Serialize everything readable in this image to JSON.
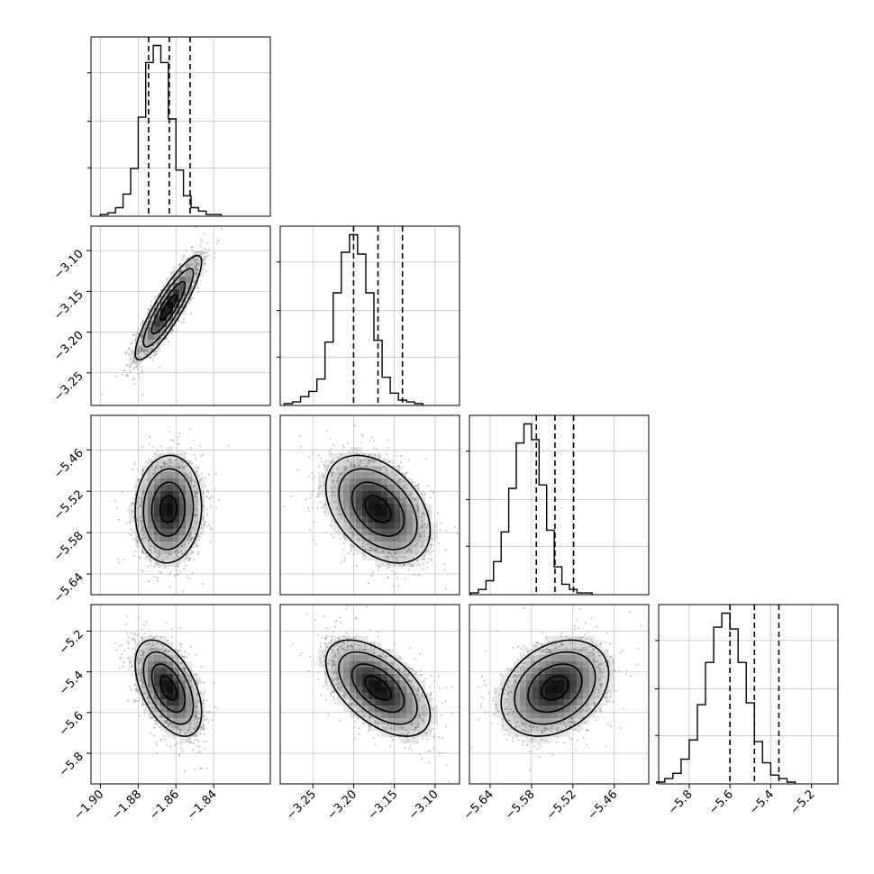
{
  "chart_data": {
    "type": "corner",
    "title": "",
    "parameters": [
      {
        "index": 0,
        "label": "",
        "range": [
          -1.905,
          -1.81
        ],
        "ticks": [
          "-1.90",
          "-1.88",
          "-1.86",
          "-1.84"
        ],
        "tick_values": [
          -1.9,
          -1.88,
          -1.86,
          -1.84
        ]
      },
      {
        "index": 1,
        "label": "",
        "range": [
          -3.29,
          -3.07
        ],
        "ticks": [
          "-3.25",
          "-3.20",
          "-3.15",
          "-3.10"
        ],
        "tick_values": [
          -3.25,
          -3.2,
          -3.15,
          -3.1
        ]
      },
      {
        "index": 2,
        "label": "",
        "range": [
          -5.67,
          -5.41
        ],
        "ticks": [
          "-5.64",
          "-5.58",
          "-5.52",
          "-5.46"
        ],
        "tick_values": [
          -5.64,
          -5.58,
          -5.52,
          -5.46
        ]
      },
      {
        "index": 3,
        "label": "",
        "range": [
          -5.95,
          -5.07
        ],
        "ticks": [
          "-5.8",
          "-5.6",
          "-5.4",
          "-5.2"
        ],
        "tick_values": [
          -5.8,
          -5.6,
          -5.4,
          -5.2
        ]
      }
    ],
    "histograms": [
      {
        "param": 0,
        "quantiles": [
          -1.8745,
          -1.8635,
          -1.8525
        ],
        "bin_start": -1.9,
        "bin_width": 0.004,
        "counts": [
          1,
          2,
          5,
          13,
          28,
          58,
          90,
          100,
          90,
          57,
          27,
          12,
          5,
          3,
          1,
          1
        ]
      },
      {
        "param": 1,
        "quantiles": [
          -3.2,
          -3.17,
          -3.14
        ],
        "bin_start": -3.285,
        "bin_width": 0.01,
        "counts": [
          1,
          2,
          5,
          8,
          15,
          36,
          64,
          87,
          97,
          86,
          64,
          37,
          16,
          7,
          3,
          2,
          1
        ]
      },
      {
        "param": 2,
        "quantiles": [
          -5.573,
          -5.546,
          -5.519
        ],
        "bin_start": -5.668,
        "bin_width": 0.011,
        "counts": [
          1,
          3,
          8,
          19,
          36,
          61,
          87,
          98,
          89,
          63,
          37,
          16,
          6,
          3,
          1,
          1
        ]
      },
      {
        "param": 3,
        "quantiles": [
          -5.6,
          -5.48,
          -5.36
        ],
        "bin_start": -5.96,
        "bin_width": 0.04,
        "counts": [
          1,
          3,
          6,
          14,
          25,
          45,
          69,
          89,
          97,
          88,
          69,
          46,
          24,
          12,
          5,
          3,
          1
        ]
      }
    ],
    "pairs": [
      {
        "x_param": 0,
        "y_param": 1,
        "center": [
          -1.864,
          -3.17
        ],
        "sigma": [
          0.0088,
          0.032
        ],
        "correlation": 0.88
      },
      {
        "x_param": 0,
        "y_param": 2,
        "center": [
          -1.864,
          -5.546
        ],
        "sigma": [
          0.0088,
          0.039
        ],
        "correlation": 0.05
      },
      {
        "x_param": 1,
        "y_param": 2,
        "center": [
          -3.17,
          -5.546
        ],
        "sigma": [
          0.032,
          0.039
        ],
        "correlation": -0.4
      },
      {
        "x_param": 0,
        "y_param": 3,
        "center": [
          -1.864,
          -5.48
        ],
        "sigma": [
          0.0088,
          0.118
        ],
        "correlation": -0.5
      },
      {
        "x_param": 1,
        "y_param": 3,
        "center": [
          -3.17,
          -5.48
        ],
        "sigma": [
          0.032,
          0.118
        ],
        "correlation": -0.55
      },
      {
        "x_param": 2,
        "y_param": 3,
        "center": [
          -5.546,
          -5.48
        ],
        "sigma": [
          0.039,
          0.118
        ],
        "correlation": 0.3
      }
    ],
    "contour_levels_sigma": [
      0.5,
      1.0,
      1.5,
      2.0
    ],
    "grid": true,
    "colors": {
      "line": "#000000",
      "points": "#a0a0a0",
      "grid": "#b0b0b0",
      "density": "#000000"
    }
  }
}
